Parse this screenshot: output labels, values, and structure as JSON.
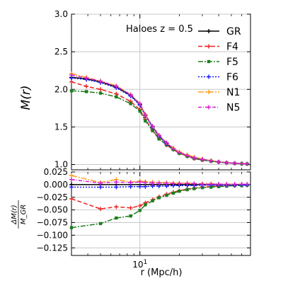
{
  "chart_data": [
    {
      "panel": "top",
      "type": "line",
      "annotation": "Haloes z = 0.5",
      "xlabel": "",
      "ylabel": "M(r)",
      "xscale": "log",
      "xlim": [
        3.0,
        70.0
      ],
      "ylim": [
        0.93,
        3.0
      ],
      "yticks": [
        1.0,
        1.5,
        2.0,
        2.5,
        3.0
      ],
      "ytick_labels": [
        "1.0",
        "1.5",
        "2.0",
        "2.5",
        "3.0"
      ],
      "xticks": [
        10
      ],
      "xtick_labels": [
        "10^1"
      ],
      "grid": "on",
      "legend": "top-right",
      "x": [
        3.0,
        3.9,
        5.0,
        6.6,
        8.5,
        10.0,
        11.0,
        12.5,
        14.0,
        16.0,
        18.0,
        20.0,
        23.0,
        26.0,
        30.0,
        35.0,
        40.0,
        46.0,
        53.0,
        60.0,
        66.0
      ],
      "series": [
        {
          "name": "GR",
          "color": "#000000",
          "dash": "solid",
          "marker": "plus",
          "values": [
            2.16,
            2.14,
            2.1,
            2.03,
            1.92,
            1.8,
            1.66,
            1.5,
            1.38,
            1.28,
            1.21,
            1.16,
            1.12,
            1.09,
            1.07,
            1.05,
            1.035,
            1.025,
            1.018,
            1.012,
            1.01
          ]
        },
        {
          "name": "F4",
          "color": "#e8231f",
          "dash": "6,3",
          "marker": "plus",
          "values": [
            2.1,
            2.04,
            2.0,
            1.94,
            1.84,
            1.73,
            1.6,
            1.46,
            1.35,
            1.26,
            1.2,
            1.15,
            1.11,
            1.08,
            1.06,
            1.045,
            1.033,
            1.023,
            1.016,
            1.011,
            1.008
          ]
        },
        {
          "name": "F5",
          "color": "#1e7d1e",
          "dash": "7,2,2,2",
          "marker": "square",
          "values": [
            1.98,
            1.97,
            1.95,
            1.9,
            1.81,
            1.71,
            1.58,
            1.45,
            1.34,
            1.26,
            1.2,
            1.15,
            1.11,
            1.08,
            1.06,
            1.045,
            1.033,
            1.023,
            1.016,
            1.011,
            1.008
          ]
        },
        {
          "name": "F6",
          "color": "#1a1aff",
          "dash": "2,2",
          "marker": "plus",
          "values": [
            2.15,
            2.13,
            2.09,
            2.02,
            1.91,
            1.79,
            1.65,
            1.5,
            1.38,
            1.28,
            1.21,
            1.16,
            1.12,
            1.09,
            1.07,
            1.05,
            1.035,
            1.025,
            1.018,
            1.012,
            1.01
          ]
        },
        {
          "name": "N1",
          "color": "#ff9f1c",
          "dash": "8,2,2,2",
          "marker": "plus",
          "values": [
            2.21,
            2.16,
            2.11,
            2.05,
            1.93,
            1.81,
            1.67,
            1.51,
            1.39,
            1.29,
            1.22,
            1.17,
            1.13,
            1.1,
            1.075,
            1.053,
            1.038,
            1.027,
            1.019,
            1.013,
            1.011
          ]
        },
        {
          "name": "N5",
          "color": "#d21ed2",
          "dash": "5,2,1,2",
          "marker": "plus",
          "values": [
            2.19,
            2.15,
            2.11,
            2.04,
            1.93,
            1.81,
            1.66,
            1.51,
            1.39,
            1.29,
            1.21,
            1.16,
            1.12,
            1.09,
            1.07,
            1.05,
            1.036,
            1.026,
            1.018,
            1.012,
            1.01
          ]
        }
      ]
    },
    {
      "panel": "bottom",
      "type": "line",
      "xlabel": "r (Mpc/h)",
      "ylabel": "ΔM(r) / M_GR",
      "xscale": "log",
      "xlim": [
        3.0,
        70.0
      ],
      "ylim": [
        -0.14,
        0.025
      ],
      "yticks": [
        0.025,
        0.0,
        -0.025,
        -0.05,
        -0.075,
        -0.1,
        -0.125
      ],
      "ytick_labels": [
        "0.025",
        "0.000",
        "−0.025",
        "−0.050",
        "−0.075",
        "−0.100",
        "−0.125"
      ],
      "xticks": [
        10
      ],
      "xtick_labels": [
        "10^1"
      ],
      "grid": "on",
      "x": [
        3.0,
        5.0,
        6.6,
        8.5,
        10.0,
        11.0,
        12.5,
        14.0,
        16.0,
        18.0,
        20.0,
        23.0,
        26.0,
        30.0,
        35.0,
        40.0,
        46.0,
        53.0,
        60.0,
        66.0
      ],
      "series": [
        {
          "name": "GR",
          "color": "#000000",
          "dash": "solid",
          "marker": "plus",
          "values": [
            0,
            0,
            0,
            0,
            0,
            0,
            0,
            0,
            0,
            0,
            0,
            0,
            0,
            0,
            0,
            0,
            0,
            0,
            0,
            0
          ]
        },
        {
          "name": "F4",
          "color": "#e8231f",
          "dash": "6,3",
          "marker": "plus",
          "values": [
            -0.028,
            -0.048,
            -0.044,
            -0.046,
            -0.042,
            -0.036,
            -0.03,
            -0.024,
            -0.019,
            -0.015,
            -0.012,
            -0.009,
            -0.007,
            -0.005,
            -0.004,
            -0.003,
            -0.002,
            -0.002,
            -0.001,
            -0.001
          ]
        },
        {
          "name": "F5",
          "color": "#1e7d1e",
          "dash": "7,2,2,2",
          "marker": "square",
          "values": [
            -0.085,
            -0.077,
            -0.066,
            -0.062,
            -0.051,
            -0.04,
            -0.032,
            -0.026,
            -0.021,
            -0.017,
            -0.013,
            -0.01,
            -0.008,
            -0.006,
            -0.005,
            -0.004,
            -0.003,
            -0.002,
            -0.002,
            -0.001
          ]
        },
        {
          "name": "F6",
          "color": "#1a1aff",
          "dash": "2,2",
          "marker": "plus",
          "values": [
            -0.005,
            -0.005,
            -0.005,
            -0.004,
            -0.004,
            -0.004,
            -0.003,
            -0.003,
            -0.003,
            -0.002,
            -0.002,
            -0.002,
            -0.002,
            -0.001,
            -0.001,
            -0.001,
            -0.001,
            -0.001,
            -0.001,
            -0.001
          ]
        },
        {
          "name": "N1",
          "color": "#ff9f1c",
          "dash": "8,2,2,2",
          "marker": "plus",
          "values": [
            0.018,
            0.004,
            0.01,
            0.005,
            0.007,
            0.006,
            0.005,
            0.004,
            0.004,
            0.003,
            0.003,
            0.003,
            0.002,
            0.002,
            0.002,
            0.001,
            0.001,
            0.001,
            0.001,
            0.001
          ]
        },
        {
          "name": "N5",
          "color": "#d21ed2",
          "dash": "5,2,1,2",
          "marker": "plus",
          "values": [
            0.01,
            0.003,
            0.005,
            0.004,
            0.005,
            0.004,
            0.003,
            0.003,
            0.003,
            0.002,
            0.002,
            0.002,
            0.002,
            0.001,
            0.001,
            0.001,
            0.001,
            0.001,
            0.001,
            0.001
          ]
        }
      ]
    }
  ]
}
